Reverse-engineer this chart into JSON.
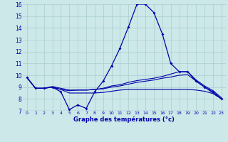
{
  "xlabel": "Graphe des températures (°c)",
  "hours": [
    0,
    1,
    2,
    3,
    4,
    5,
    6,
    7,
    8,
    9,
    10,
    11,
    12,
    13,
    14,
    15,
    16,
    17,
    18,
    19,
    20,
    21,
    22,
    23
  ],
  "curve1": [
    9.8,
    8.9,
    8.9,
    9.0,
    8.6,
    7.1,
    7.5,
    7.2,
    8.6,
    9.5,
    10.8,
    12.3,
    14.1,
    16.0,
    16.0,
    15.3,
    13.5,
    11.0,
    10.3,
    10.3,
    9.5,
    9.0,
    8.6,
    8.0
  ],
  "curve2": [
    9.8,
    8.9,
    8.9,
    9.0,
    8.8,
    8.7,
    8.75,
    8.75,
    8.8,
    8.85,
    9.0,
    9.1,
    9.25,
    9.4,
    9.5,
    9.6,
    9.75,
    9.85,
    10.0,
    10.05,
    9.5,
    9.0,
    8.5,
    8.0
  ],
  "curve3": [
    9.8,
    8.9,
    8.9,
    9.05,
    8.9,
    8.75,
    8.75,
    8.75,
    8.8,
    8.9,
    9.1,
    9.2,
    9.4,
    9.55,
    9.65,
    9.75,
    9.9,
    10.1,
    10.3,
    10.3,
    9.6,
    9.1,
    8.7,
    8.1
  ],
  "curve4": [
    9.8,
    8.9,
    8.9,
    9.0,
    8.8,
    8.5,
    8.5,
    8.5,
    8.5,
    8.55,
    8.65,
    8.75,
    8.8,
    8.8,
    8.8,
    8.8,
    8.8,
    8.8,
    8.8,
    8.8,
    8.75,
    8.65,
    8.45,
    8.0
  ],
  "bg_color": "#cce8e8",
  "line_color": "#0000aa",
  "grid_color": "#aacece",
  "ylim": [
    7,
    16
  ],
  "yticks": [
    7,
    8,
    9,
    10,
    11,
    12,
    13,
    14,
    15,
    16
  ],
  "xticks": [
    0,
    1,
    2,
    3,
    4,
    5,
    6,
    7,
    8,
    9,
    10,
    11,
    12,
    13,
    14,
    15,
    16,
    17,
    18,
    19,
    20,
    21,
    22,
    23
  ]
}
